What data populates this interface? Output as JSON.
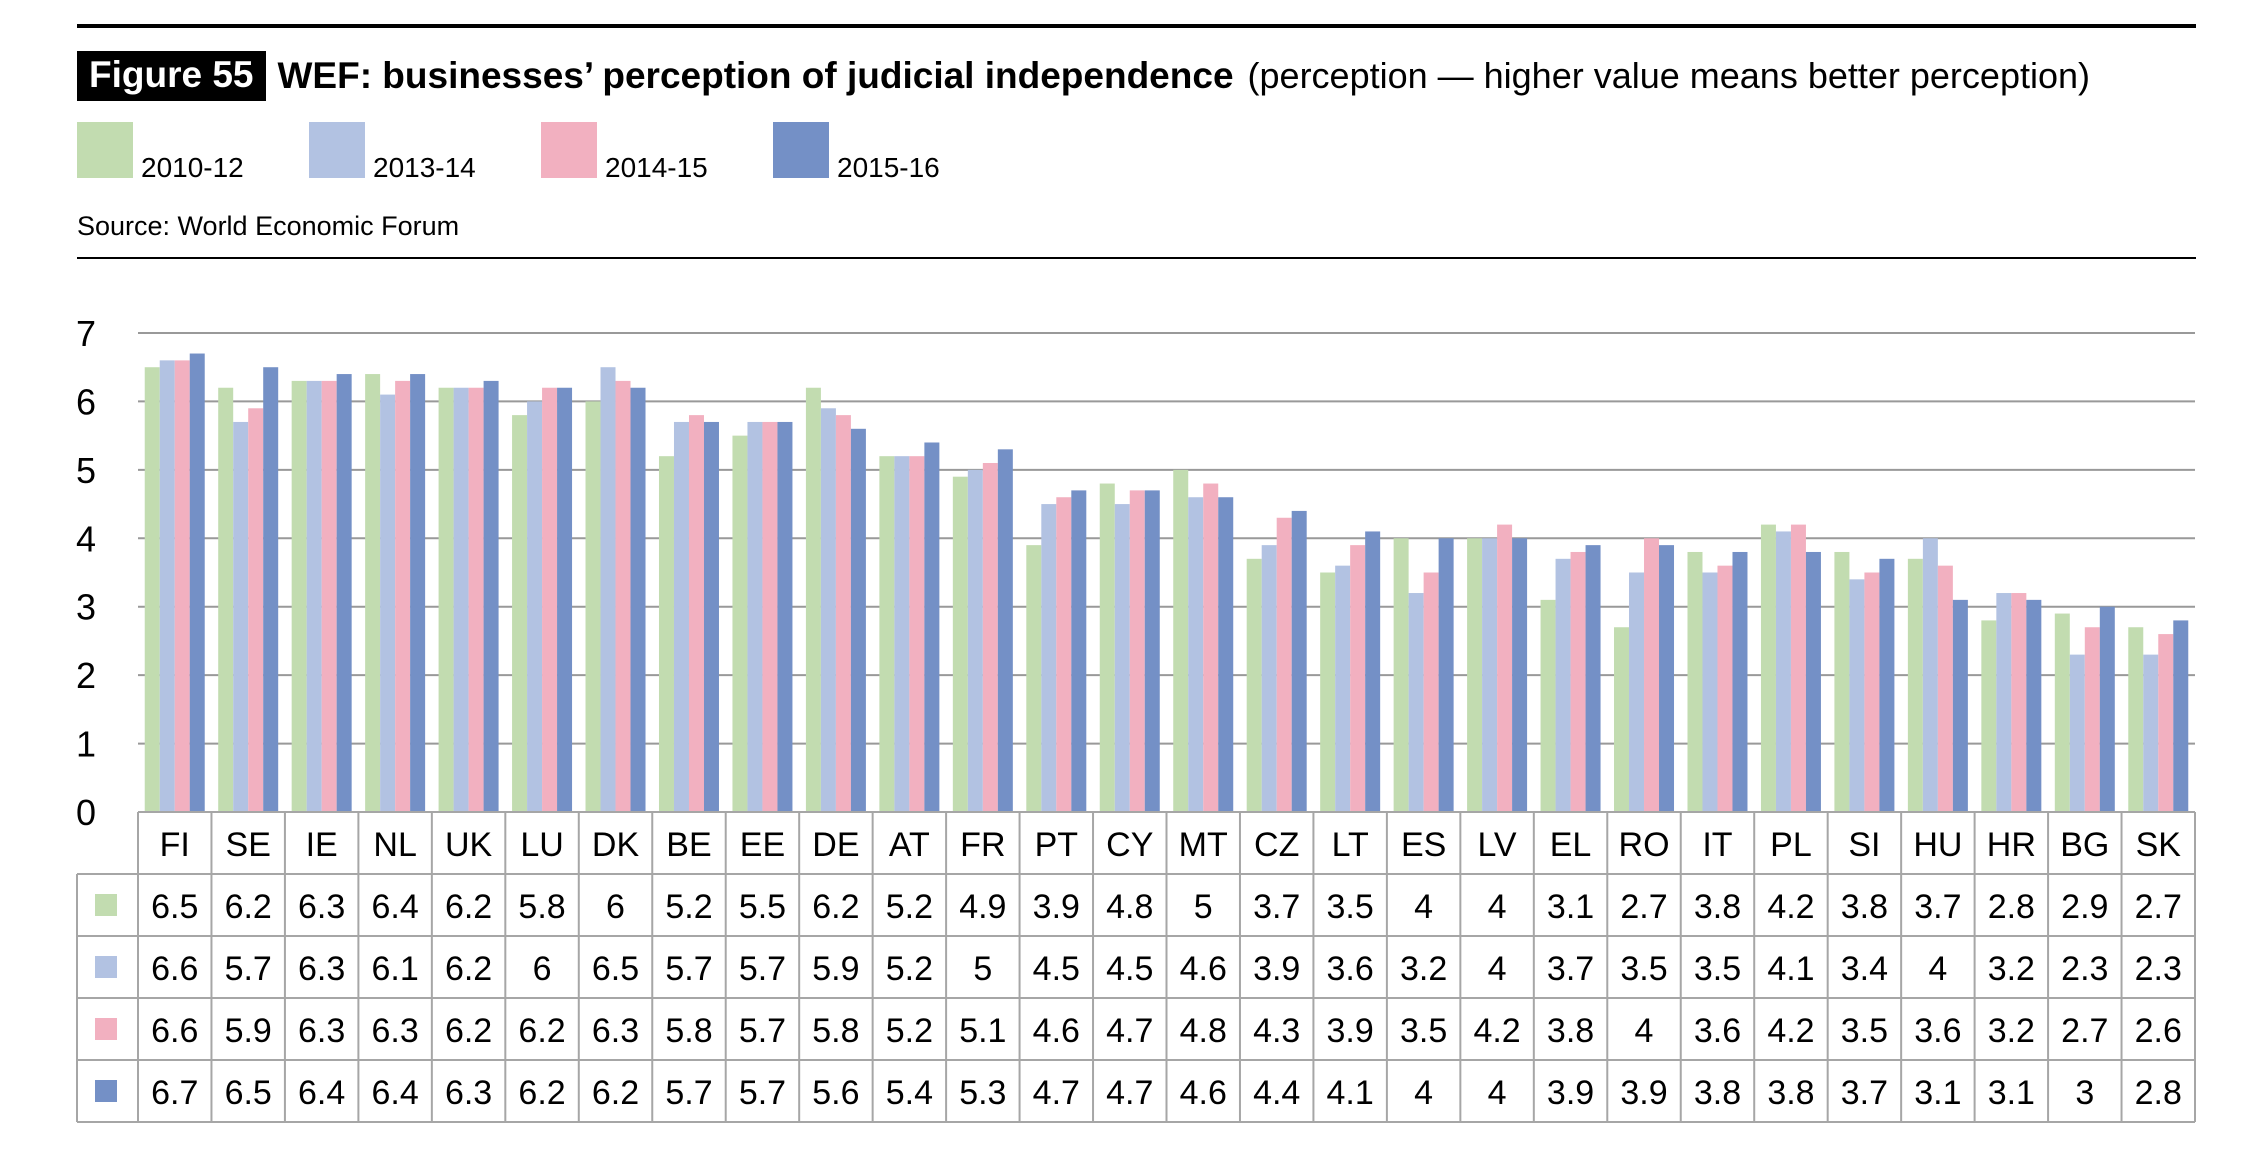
{
  "figure": {
    "label": "Figure 55",
    "title": "WEF: businesses’ perception of judicial independence",
    "subtitle": "(perception — higher value means better perception)",
    "source": "Source: World Economic Forum"
  },
  "colors": {
    "s2010": "#c2dcb0",
    "s2013": "#b2c2e2",
    "s2014": "#f2b0c0",
    "s2015": "#7490c6",
    "grid": "#999999",
    "table_border": "#a6a6a6"
  },
  "chart_data": {
    "type": "bar",
    "title": "WEF: businesses’ perception of judicial independence",
    "ylim": [
      0,
      7
    ],
    "yticks": [
      "0",
      "1",
      "2",
      "3",
      "4",
      "5",
      "6",
      "7"
    ],
    "grid": true,
    "legend_position": "top-left",
    "categories": [
      "FI",
      "SE",
      "IE",
      "NL",
      "UK",
      "LU",
      "DK",
      "BE",
      "EE",
      "DE",
      "AT",
      "FR",
      "PT",
      "CY",
      "MT",
      "CZ",
      "LT",
      "ES",
      "LV",
      "EL",
      "RO",
      "IT",
      "PL",
      "SI",
      "HU",
      "HR",
      "BG",
      "SK"
    ],
    "series": [
      {
        "name": "2010-12",
        "values": [
          6.5,
          6.2,
          6.3,
          6.4,
          6.2,
          5.8,
          6,
          5.2,
          5.5,
          6.2,
          5.2,
          4.9,
          3.9,
          4.8,
          5,
          3.7,
          3.5,
          4,
          4,
          3.1,
          2.7,
          3.8,
          4.2,
          3.8,
          3.7,
          2.8,
          2.9,
          2.7
        ]
      },
      {
        "name": "2013-14",
        "values": [
          6.6,
          5.7,
          6.3,
          6.1,
          6.2,
          6,
          6.5,
          5.7,
          5.7,
          5.9,
          5.2,
          5,
          4.5,
          4.5,
          4.6,
          3.9,
          3.6,
          3.2,
          4,
          3.7,
          3.5,
          3.5,
          4.1,
          3.4,
          4,
          3.2,
          2.3,
          2.3
        ]
      },
      {
        "name": "2014-15",
        "values": [
          6.6,
          5.9,
          6.3,
          6.3,
          6.2,
          6.2,
          6.3,
          5.8,
          5.7,
          5.8,
          5.2,
          5.1,
          4.6,
          4.7,
          4.8,
          4.3,
          3.9,
          3.5,
          4.2,
          3.8,
          4,
          3.6,
          4.2,
          3.5,
          3.6,
          3.2,
          2.7,
          2.6
        ]
      },
      {
        "name": "2015-16",
        "values": [
          6.7,
          6.5,
          6.4,
          6.4,
          6.3,
          6.2,
          6.2,
          5.7,
          5.7,
          5.6,
          5.4,
          5.3,
          4.7,
          4.7,
          4.6,
          4.4,
          4.1,
          4,
          4,
          3.9,
          3.9,
          3.8,
          3.8,
          3.7,
          3.1,
          3.1,
          3,
          2.8
        ]
      }
    ]
  }
}
